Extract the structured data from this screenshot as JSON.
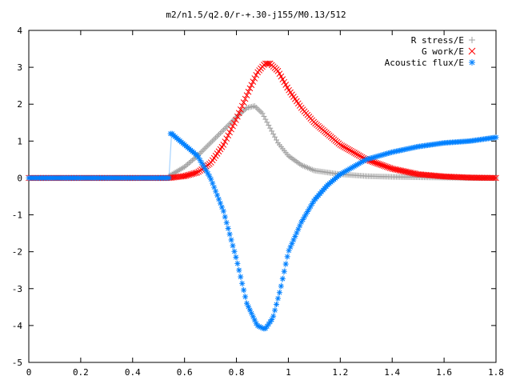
{
  "chart_data": {
    "type": "scatter",
    "title": "m2/n1.5/q2.0/r-+.30-j155/M0.13/512",
    "xlabel": "",
    "ylabel": "",
    "xlim": [
      0,
      1.8
    ],
    "ylim": [
      -5,
      4
    ],
    "x_ticks": [
      "0",
      "0.2",
      "0.4",
      "0.6",
      "0.8",
      "1",
      "1.2",
      "1.4",
      "1.6",
      "1.8"
    ],
    "y_ticks": [
      "-5",
      "-4",
      "-3",
      "-2",
      "-1",
      "0",
      "1",
      "2",
      "3",
      "4"
    ],
    "grid": false,
    "legend_position": "top-right",
    "series": [
      {
        "name": "R stress/E",
        "marker": "plus",
        "color": "#a0a0a0",
        "x": [
          0.0,
          0.54,
          0.6,
          0.65,
          0.7,
          0.75,
          0.8,
          0.84,
          0.87,
          0.9,
          0.93,
          0.96,
          1.0,
          1.05,
          1.1,
          1.2,
          1.3,
          1.4,
          1.5,
          1.6,
          1.7,
          1.8
        ],
        "y": [
          0.0,
          0.05,
          0.3,
          0.6,
          0.95,
          1.3,
          1.65,
          1.9,
          1.95,
          1.75,
          1.35,
          0.95,
          0.6,
          0.35,
          0.2,
          0.1,
          0.05,
          0.03,
          0.02,
          0.01,
          0.0,
          0.0
        ]
      },
      {
        "name": "G work/E",
        "marker": "cross",
        "color": "#ff0000",
        "x": [
          0.0,
          0.54,
          0.6,
          0.65,
          0.7,
          0.75,
          0.8,
          0.85,
          0.88,
          0.91,
          0.93,
          0.96,
          1.0,
          1.05,
          1.1,
          1.2,
          1.3,
          1.4,
          1.5,
          1.6,
          1.7,
          1.8
        ],
        "y": [
          0.0,
          0.0,
          0.05,
          0.15,
          0.4,
          0.9,
          1.6,
          2.4,
          2.85,
          3.1,
          3.1,
          2.9,
          2.4,
          1.9,
          1.5,
          0.9,
          0.5,
          0.25,
          0.1,
          0.04,
          0.01,
          0.0
        ]
      },
      {
        "name": "Acoustic flux/E",
        "marker": "star",
        "color": "#0080ff",
        "x": [
          0.0,
          0.54,
          0.55,
          0.6,
          0.65,
          0.7,
          0.75,
          0.8,
          0.84,
          0.88,
          0.91,
          0.94,
          0.97,
          1.0,
          1.05,
          1.1,
          1.15,
          1.2,
          1.3,
          1.4,
          1.5,
          1.6,
          1.7,
          1.8
        ],
        "y": [
          0.0,
          0.0,
          1.2,
          0.9,
          0.6,
          0.0,
          -0.9,
          -2.2,
          -3.4,
          -4.0,
          -4.1,
          -3.8,
          -3.0,
          -2.0,
          -1.2,
          -0.6,
          -0.2,
          0.1,
          0.5,
          0.7,
          0.85,
          0.95,
          1.0,
          1.1
        ]
      }
    ]
  }
}
